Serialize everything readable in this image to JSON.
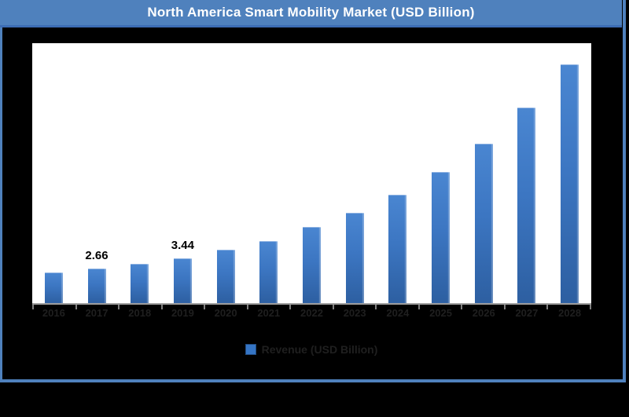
{
  "header": {
    "title": "North America Smart Mobility Market (USD Billion)"
  },
  "legend": {
    "label": "Revenue (USD Billion)"
  },
  "colors": {
    "banner_bg": "#4F81BD",
    "banner_edge": "#3C6CB4",
    "frame_border": "#4F81BD",
    "background": "#000000",
    "plot_bg": "#FFFFFF",
    "axis_line": "#9D9D9D",
    "tick_mark": "#7F7F7F",
    "tick_label": "#1F1F1F",
    "bar_top": "#4A86D1",
    "bar_bottom": "#2D5FA1",
    "legend_swatch": "#3575C5",
    "data_label": "#000000"
  },
  "chart_data": {
    "type": "bar",
    "title": "North America Smart Mobility Market (USD Billion)",
    "categories": [
      "2016",
      "2017",
      "2018",
      "2019",
      "2020",
      "2021",
      "2022",
      "2023",
      "2024",
      "2025",
      "2026",
      "2027",
      "2028"
    ],
    "values": [
      2.37,
      2.66,
      3.05,
      3.44,
      4.13,
      4.8,
      5.84,
      6.93,
      8.33,
      10.09,
      12.28,
      15.02,
      18.37
    ],
    "visible_data_labels": {
      "2017": "2.66",
      "2019": "3.44"
    },
    "legend_entries": [
      "Revenue (USD Billion)"
    ],
    "legend_position": "bottom",
    "xlabel": "",
    "ylabel": "",
    "ylim": [
      0,
      20
    ],
    "grid": false,
    "y_axis_visible": false
  }
}
